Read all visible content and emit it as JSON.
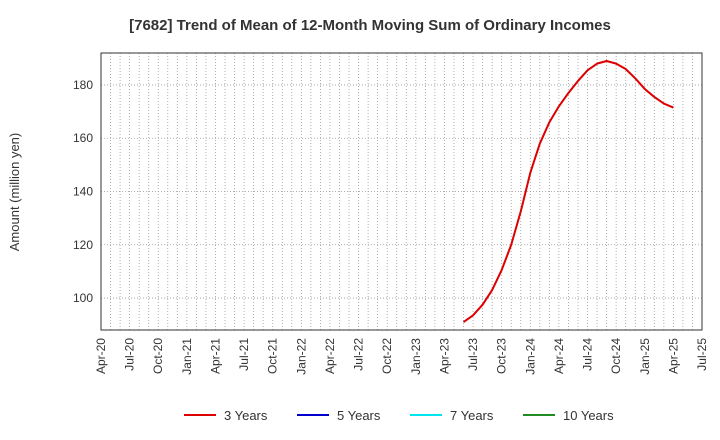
{
  "chart_data": {
    "type": "line",
    "title": "[7682]  Trend of Mean of 12-Month Moving Sum of Ordinary Incomes",
    "ylabel": "Amount (million yen)",
    "xlabel": "",
    "ylim": [
      88,
      192
    ],
    "yticks": [
      100,
      120,
      140,
      160,
      180
    ],
    "xticks": [
      "Apr-20",
      "Jul-20",
      "Oct-20",
      "Jan-21",
      "Apr-21",
      "Jul-21",
      "Oct-21",
      "Jan-22",
      "Apr-22",
      "Jul-22",
      "Oct-22",
      "Jan-23",
      "Apr-23",
      "Jul-23",
      "Oct-23",
      "Jan-24",
      "Apr-24",
      "Jul-24",
      "Oct-24",
      "Jan-25",
      "Apr-25",
      "Jul-25"
    ],
    "grid": true,
    "legend_position": "bottom",
    "series": [
      {
        "name": "3 Years",
        "color": "#dd0000",
        "points": [
          [
            "Jun-23",
            91
          ],
          [
            "Jul-23",
            93.5
          ],
          [
            "Aug-23",
            97.5
          ],
          [
            "Sep-23",
            103
          ],
          [
            "Oct-23",
            110.5
          ],
          [
            "Nov-23",
            120
          ],
          [
            "Dec-23",
            132.5
          ],
          [
            "Jan-24",
            147
          ],
          [
            "Feb-24",
            158
          ],
          [
            "Mar-24",
            166
          ],
          [
            "Apr-24",
            172
          ],
          [
            "May-24",
            177
          ],
          [
            "Jun-24",
            181.5
          ],
          [
            "Jul-24",
            185.5
          ],
          [
            "Aug-24",
            188
          ],
          [
            "Sep-24",
            189
          ],
          [
            "Oct-24",
            188
          ],
          [
            "Nov-24",
            186
          ],
          [
            "Dec-24",
            182.5
          ],
          [
            "Jan-25",
            178.5
          ],
          [
            "Feb-25",
            175.5
          ],
          [
            "Mar-25",
            173
          ],
          [
            "Apr-25",
            171.5
          ]
        ]
      },
      {
        "name": "5 Years",
        "color": "#0000cc",
        "points": []
      },
      {
        "name": "7 Years",
        "color": "#00e5ee",
        "points": []
      },
      {
        "name": "10 Years",
        "color": "#228b22",
        "points": []
      }
    ]
  }
}
